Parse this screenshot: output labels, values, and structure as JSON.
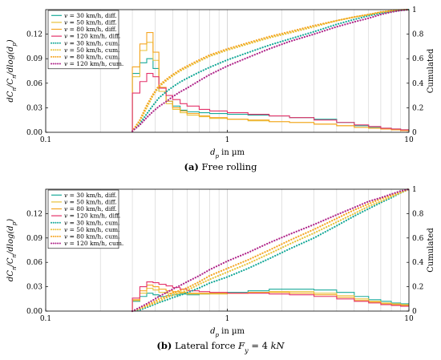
{
  "chart_data": [
    {
      "type": "line",
      "panel_label": "(a)",
      "caption": "Free rolling",
      "xlabel": "d_p in µm",
      "ylabel": "dC_n/C_n/dlog(d_p)",
      "y2label": "Cumulated",
      "xscale": "log",
      "xlim": [
        0.1,
        10
      ],
      "ylim": [
        0,
        0.15
      ],
      "y2lim": [
        0,
        1
      ],
      "x_ticks": [
        "0.1",
        "1",
        "10"
      ],
      "y_ticks": [
        "0.00",
        "0.03",
        "0.06",
        "0.09",
        "0.12"
      ],
      "y2_ticks": [
        "0",
        "0.2",
        "0.4",
        "0.6",
        "0.8",
        "1"
      ],
      "grid": true,
      "legend_position": "top-left",
      "series": [
        {
          "name": "v = 30 km/h, diff.",
          "color": "#1aaa9a",
          "style": "step",
          "axis": "left",
          "x": [
            0.3,
            0.33,
            0.36,
            0.39,
            0.42,
            0.46,
            0.5,
            0.55,
            0.6,
            0.7,
            0.8,
            1,
            1.3,
            1.7,
            2.2,
            3,
            4,
            5,
            6,
            7,
            8,
            9,
            10
          ],
          "y": [
            0.072,
            0.085,
            0.09,
            0.078,
            0.05,
            0.038,
            0.032,
            0.027,
            0.025,
            0.024,
            0.023,
            0.022,
            0.021,
            0.02,
            0.018,
            0.016,
            0.012,
            0.008,
            0.006,
            0.005,
            0.004,
            0.003,
            0.002
          ]
        },
        {
          "name": "v = 50 km/h, diff.",
          "color": "#e8c23a",
          "style": "step",
          "axis": "left",
          "x": [
            0.3,
            0.33,
            0.36,
            0.39,
            0.42,
            0.46,
            0.5,
            0.55,
            0.6,
            0.7,
            0.8,
            1,
            1.3,
            1.7,
            2.2,
            3,
            4,
            5,
            6,
            7,
            8,
            9,
            10
          ],
          "y": [
            0.068,
            0.1,
            0.11,
            0.088,
            0.05,
            0.035,
            0.028,
            0.024,
            0.021,
            0.019,
            0.017,
            0.016,
            0.014,
            0.013,
            0.012,
            0.01,
            0.008,
            0.006,
            0.005,
            0.004,
            0.003,
            0.002,
            0.001
          ]
        },
        {
          "name": "v = 80 km/h, diff.",
          "color": "#f5a623",
          "style": "step",
          "axis": "left",
          "x": [
            0.3,
            0.33,
            0.36,
            0.39,
            0.42,
            0.46,
            0.5,
            0.55,
            0.6,
            0.7,
            0.8,
            1,
            1.3,
            1.7,
            2.2,
            3,
            4,
            5,
            6,
            7,
            8,
            9,
            10
          ],
          "y": [
            0.08,
            0.108,
            0.122,
            0.098,
            0.055,
            0.038,
            0.03,
            0.026,
            0.023,
            0.02,
            0.018,
            0.016,
            0.015,
            0.013,
            0.012,
            0.01,
            0.008,
            0.006,
            0.005,
            0.004,
            0.003,
            0.002,
            0.001
          ]
        },
        {
          "name": "v = 120 km/h, diff.",
          "color": "#e4326a",
          "style": "step",
          "axis": "left",
          "x": [
            0.3,
            0.33,
            0.36,
            0.39,
            0.42,
            0.46,
            0.5,
            0.55,
            0.6,
            0.7,
            0.8,
            1,
            1.3,
            1.7,
            2.2,
            3,
            4,
            5,
            6,
            7,
            8,
            9,
            10
          ],
          "y": [
            0.048,
            0.062,
            0.072,
            0.068,
            0.054,
            0.045,
            0.04,
            0.035,
            0.032,
            0.028,
            0.026,
            0.024,
            0.022,
            0.02,
            0.018,
            0.015,
            0.012,
            0.009,
            0.007,
            0.005,
            0.004,
            0.003,
            0.002
          ]
        },
        {
          "name": "v = 30 km/h, cum.",
          "color": "#1aaa9a",
          "style": "dotted",
          "axis": "right",
          "x": [
            0.3,
            0.33,
            0.36,
            0.39,
            0.42,
            0.46,
            0.5,
            0.55,
            0.6,
            0.7,
            0.8,
            1,
            1.3,
            1.7,
            2.2,
            3,
            4,
            5,
            6,
            7,
            8,
            9,
            10
          ],
          "y": [
            0.01,
            0.07,
            0.15,
            0.22,
            0.28,
            0.33,
            0.37,
            0.41,
            0.44,
            0.49,
            0.53,
            0.59,
            0.65,
            0.71,
            0.76,
            0.82,
            0.88,
            0.92,
            0.95,
            0.97,
            0.985,
            0.995,
            1.0
          ]
        },
        {
          "name": "v = 50 km/h, cum.",
          "color": "#e8c23a",
          "style": "dotted",
          "axis": "right",
          "x": [
            0.3,
            0.33,
            0.36,
            0.39,
            0.42,
            0.46,
            0.5,
            0.55,
            0.6,
            0.7,
            0.8,
            1,
            1.3,
            1.7,
            2.2,
            3,
            4,
            5,
            6,
            7,
            8,
            9,
            10
          ],
          "y": [
            0.01,
            0.09,
            0.2,
            0.3,
            0.37,
            0.42,
            0.46,
            0.5,
            0.53,
            0.58,
            0.62,
            0.67,
            0.72,
            0.77,
            0.81,
            0.86,
            0.91,
            0.94,
            0.96,
            0.98,
            0.99,
            0.997,
            1.0
          ]
        },
        {
          "name": "v = 80 km/h, cum.",
          "color": "#f5a623",
          "style": "dotted",
          "axis": "right",
          "x": [
            0.3,
            0.33,
            0.36,
            0.39,
            0.42,
            0.46,
            0.5,
            0.55,
            0.6,
            0.7,
            0.8,
            1,
            1.3,
            1.7,
            2.2,
            3,
            4,
            5,
            6,
            7,
            8,
            9,
            10
          ],
          "y": [
            0.01,
            0.1,
            0.22,
            0.31,
            0.38,
            0.43,
            0.47,
            0.51,
            0.54,
            0.59,
            0.63,
            0.68,
            0.73,
            0.78,
            0.82,
            0.87,
            0.91,
            0.94,
            0.96,
            0.98,
            0.99,
            0.997,
            1.0
          ]
        },
        {
          "name": "v = 120 km/h, cum.",
          "color": "#b0268a",
          "style": "dotted",
          "axis": "right",
          "x": [
            0.3,
            0.33,
            0.36,
            0.39,
            0.42,
            0.46,
            0.5,
            0.55,
            0.6,
            0.7,
            0.8,
            1,
            1.3,
            1.7,
            2.2,
            3,
            4,
            5,
            6,
            7,
            8,
            9,
            10
          ],
          "y": [
            0.01,
            0.06,
            0.12,
            0.17,
            0.21,
            0.25,
            0.29,
            0.33,
            0.36,
            0.42,
            0.47,
            0.54,
            0.61,
            0.68,
            0.74,
            0.8,
            0.86,
            0.9,
            0.93,
            0.96,
            0.98,
            0.993,
            1.0
          ]
        }
      ]
    },
    {
      "type": "line",
      "panel_label": "(b)",
      "caption": "Lateral force F_y = 4 kN",
      "xlabel": "d_p in µm",
      "ylabel": "dC_n/C_n/dlog(d_p)",
      "y2label": "Cumulated",
      "xscale": "log",
      "xlim": [
        0.1,
        10
      ],
      "ylim": [
        0,
        0.15
      ],
      "y2lim": [
        0,
        1
      ],
      "x_ticks": [
        "0.1",
        "1",
        "10"
      ],
      "y_ticks": [
        "0.00",
        "0.03",
        "0.06",
        "0.09",
        "0.12"
      ],
      "y2_ticks": [
        "0",
        "0.2",
        "0.4",
        "0.6",
        "0.8",
        "1"
      ],
      "grid": true,
      "legend_position": "top-left",
      "series": [
        {
          "name": "v = 30 km/h, diff.",
          "color": "#1aaa9a",
          "style": "step",
          "axis": "left",
          "x": [
            0.3,
            0.33,
            0.36,
            0.39,
            0.42,
            0.46,
            0.5,
            0.55,
            0.6,
            0.7,
            0.8,
            1,
            1.3,
            1.7,
            2.2,
            3,
            4,
            5,
            6,
            7,
            8,
            9,
            10
          ],
          "y": [
            0.012,
            0.018,
            0.022,
            0.02,
            0.018,
            0.019,
            0.02,
            0.021,
            0.02,
            0.021,
            0.022,
            0.023,
            0.025,
            0.027,
            0.027,
            0.026,
            0.023,
            0.018,
            0.014,
            0.012,
            0.01,
            0.009,
            0.008
          ]
        },
        {
          "name": "v = 50 km/h, diff.",
          "color": "#e8c23a",
          "style": "step",
          "axis": "left",
          "x": [
            0.3,
            0.33,
            0.36,
            0.39,
            0.42,
            0.46,
            0.5,
            0.55,
            0.6,
            0.7,
            0.8,
            1,
            1.3,
            1.7,
            2.2,
            3,
            4,
            5,
            6,
            7,
            8,
            9,
            10
          ],
          "y": [
            0.013,
            0.022,
            0.028,
            0.026,
            0.023,
            0.022,
            0.022,
            0.022,
            0.021,
            0.021,
            0.021,
            0.022,
            0.023,
            0.024,
            0.024,
            0.022,
            0.019,
            0.015,
            0.012,
            0.01,
            0.009,
            0.008,
            0.007
          ]
        },
        {
          "name": "v = 80 km/h, diff.",
          "color": "#f5a623",
          "style": "step",
          "axis": "left",
          "x": [
            0.3,
            0.33,
            0.36,
            0.39,
            0.42,
            0.46,
            0.5,
            0.55,
            0.6,
            0.7,
            0.8,
            1,
            1.3,
            1.7,
            2.2,
            3,
            4,
            5,
            6,
            7,
            8,
            9,
            10
          ],
          "y": [
            0.014,
            0.025,
            0.032,
            0.03,
            0.027,
            0.025,
            0.024,
            0.023,
            0.022,
            0.022,
            0.022,
            0.022,
            0.023,
            0.023,
            0.022,
            0.02,
            0.017,
            0.013,
            0.011,
            0.009,
            0.008,
            0.007,
            0.006
          ]
        },
        {
          "name": "v = 120 km/h, diff.",
          "color": "#e4326a",
          "style": "step",
          "axis": "left",
          "x": [
            0.3,
            0.33,
            0.36,
            0.39,
            0.42,
            0.46,
            0.5,
            0.55,
            0.6,
            0.7,
            0.8,
            1,
            1.3,
            1.7,
            2.2,
            3,
            4,
            5,
            6,
            7,
            8,
            9,
            10
          ],
          "y": [
            0.016,
            0.03,
            0.036,
            0.035,
            0.033,
            0.031,
            0.029,
            0.027,
            0.025,
            0.024,
            0.023,
            0.022,
            0.022,
            0.021,
            0.02,
            0.018,
            0.015,
            0.012,
            0.01,
            0.008,
            0.007,
            0.006,
            0.005
          ]
        },
        {
          "name": "v = 30 km/h, cum.",
          "color": "#1aaa9a",
          "style": "dotted",
          "axis": "right",
          "x": [
            0.3,
            0.33,
            0.36,
            0.39,
            0.42,
            0.46,
            0.5,
            0.55,
            0.6,
            0.7,
            0.8,
            1,
            1.3,
            1.7,
            2.2,
            3,
            4,
            5,
            6,
            7,
            8,
            9,
            10
          ],
          "y": [
            0.0,
            0.01,
            0.03,
            0.05,
            0.07,
            0.09,
            0.11,
            0.13,
            0.15,
            0.19,
            0.23,
            0.28,
            0.35,
            0.43,
            0.51,
            0.6,
            0.7,
            0.78,
            0.84,
            0.89,
            0.93,
            0.97,
            1.0
          ]
        },
        {
          "name": "v = 50 km/h, cum.",
          "color": "#e8c23a",
          "style": "dotted",
          "axis": "right",
          "x": [
            0.3,
            0.33,
            0.36,
            0.39,
            0.42,
            0.46,
            0.5,
            0.55,
            0.6,
            0.7,
            0.8,
            1,
            1.3,
            1.7,
            2.2,
            3,
            4,
            5,
            6,
            7,
            8,
            9,
            10
          ],
          "y": [
            0.0,
            0.02,
            0.04,
            0.06,
            0.08,
            0.11,
            0.13,
            0.15,
            0.17,
            0.22,
            0.26,
            0.32,
            0.39,
            0.47,
            0.55,
            0.64,
            0.73,
            0.8,
            0.86,
            0.9,
            0.94,
            0.97,
            1.0
          ]
        },
        {
          "name": "v = 80 km/h, cum.",
          "color": "#f5a623",
          "style": "dotted",
          "axis": "right",
          "x": [
            0.3,
            0.33,
            0.36,
            0.39,
            0.42,
            0.46,
            0.5,
            0.55,
            0.6,
            0.7,
            0.8,
            1,
            1.3,
            1.7,
            2.2,
            3,
            4,
            5,
            6,
            7,
            8,
            9,
            10
          ],
          "y": [
            0.0,
            0.02,
            0.05,
            0.07,
            0.1,
            0.12,
            0.15,
            0.17,
            0.19,
            0.24,
            0.29,
            0.35,
            0.42,
            0.5,
            0.58,
            0.67,
            0.76,
            0.83,
            0.88,
            0.92,
            0.95,
            0.98,
            1.0
          ]
        },
        {
          "name": "v = 120 km/h, cum.",
          "color": "#b0268a",
          "style": "dotted",
          "axis": "right",
          "x": [
            0.3,
            0.33,
            0.36,
            0.39,
            0.42,
            0.46,
            0.5,
            0.55,
            0.6,
            0.7,
            0.8,
            1,
            1.3,
            1.7,
            2.2,
            3,
            4,
            5,
            6,
            7,
            8,
            9,
            10
          ],
          "y": [
            0.0,
            0.03,
            0.06,
            0.09,
            0.12,
            0.15,
            0.18,
            0.21,
            0.24,
            0.29,
            0.34,
            0.41,
            0.48,
            0.56,
            0.63,
            0.71,
            0.79,
            0.85,
            0.9,
            0.93,
            0.96,
            0.985,
            1.0
          ]
        }
      ]
    }
  ]
}
